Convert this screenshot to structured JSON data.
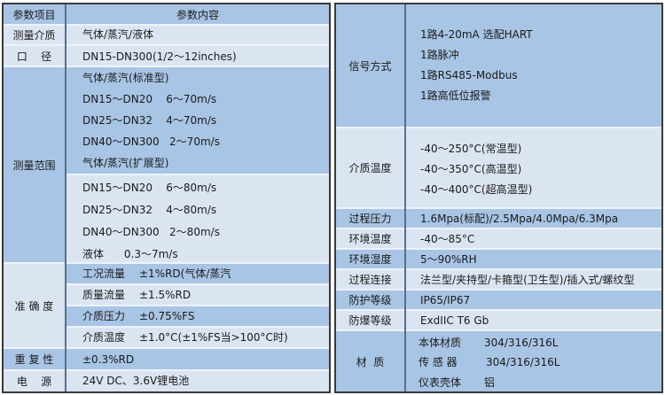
{
  "colors": {
    "dark": "#a9c5e5",
    "light": "#dbe5f2",
    "border": "#3a3a3a"
  },
  "left": {
    "header": {
      "item": "参数项目",
      "content": "参数内容"
    },
    "medium": {
      "label": "测量介质",
      "value": "气体/蒸汽/液体"
    },
    "caliber": {
      "label": "口    径",
      "value": "DN15-DN300(1/2～12inches)"
    },
    "range": {
      "label": "测量范围",
      "lines": [
        "气体/蒸汽(标准型)",
        "DN15～DN20    6～70m/s",
        "DN25～DN32    4～70m/s",
        "DN40～DN300   2～70m/s",
        "气体/蒸汽(扩展型)",
        "DN15～DN20    6～80m/s",
        "DN25～DN32    4～80m/s",
        "DN40～DN300   2～80m/s",
        "液体      0.3～7m/s"
      ]
    },
    "accuracy": {
      "label": "准 确 度",
      "rows": [
        {
          "name": "工况流量",
          "value": "±1%RD(气体/蒸汽"
        },
        {
          "name": "质量流量",
          "value": "±1.5%RD"
        },
        {
          "name": "介质压力",
          "value": "±0.75%FS"
        },
        {
          "name": "介质温度",
          "value": "±1.0°C(±1%FS当>100°C时)"
        }
      ]
    },
    "repeat": {
      "label": "重 复 性",
      "value": "±0.3%RD"
    },
    "power": {
      "label": "电    源",
      "value": "24V DC、3.6V锂电池"
    }
  },
  "right": {
    "signal": {
      "label": "信号方式",
      "lines": [
        "1路4-20mA 选配HART",
        "1路脉冲",
        "1路RS485-Modbus",
        "1路高低位报警"
      ]
    },
    "mtemp": {
      "label": "介质温度",
      "lines": [
        "-40～250°C(常温型)",
        "-40～350°C(高温型)",
        "-40～400°C(超高温型)"
      ]
    },
    "rows": [
      {
        "label": "过程压力",
        "value": "1.6Mpa(标配)/2.5Mpa/4.0Mpa/6.3Mpa"
      },
      {
        "label": "环境温度",
        "value": "-40～85°C"
      },
      {
        "label": "环境湿度",
        "value": "5～90%RH"
      },
      {
        "label": "过程连接",
        "value": "法兰型/夹持型/卡箍型(卫生型)/插入式/螺纹型"
      },
      {
        "label": "防护等级",
        "value": "IP65/IP67"
      },
      {
        "label": "防爆等级",
        "value": "ExdIIC T6 Gb"
      }
    ],
    "material": {
      "label": "材  质",
      "rows": [
        {
          "name": "本体材质",
          "value": "304/316/316L"
        },
        {
          "name": "传 感 器",
          "value": "304/316/316L"
        },
        {
          "name": "仪表壳体",
          "value": "铝"
        }
      ]
    }
  }
}
